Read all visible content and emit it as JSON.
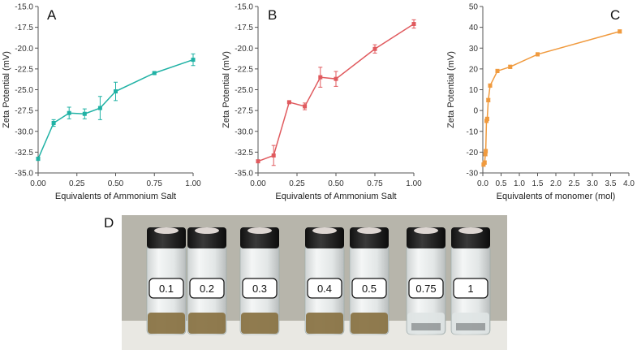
{
  "chart_data": [
    {
      "type": "line",
      "title": "A",
      "x_label": "Equivalents of Ammonium Salt",
      "y_label": "Zeta Potential (mV)",
      "color": "#20b2a5",
      "x": [
        0,
        0.1,
        0.2,
        0.3,
        0.4,
        0.5,
        0.75,
        1
      ],
      "values": [
        -33.3,
        -29,
        -27.8,
        -27.9,
        -27.2,
        -25.2,
        -23,
        -21.4
      ],
      "errors": [
        0.2,
        0.4,
        0.7,
        0.6,
        1.4,
        1.1,
        0.1,
        0.7
      ],
      "xlim": [
        0,
        1
      ],
      "xticks": [
        {
          "value": 0,
          "label": "0.00"
        },
        {
          "value": 0.25,
          "label": "0.25"
        },
        {
          "value": 0.5,
          "label": "0.50"
        },
        {
          "value": 0.75,
          "label": "0.75"
        },
        {
          "value": 1,
          "label": "1.00"
        }
      ],
      "ylim": [
        -35,
        -15
      ],
      "yticks": [
        {
          "value": -35,
          "label": "-35.0"
        },
        -32.5,
        {
          "value": -30,
          "label": "-30.0"
        },
        -27.5,
        {
          "value": -25,
          "label": "-25.0"
        },
        -22.5,
        {
          "value": -20,
          "label": "-20.0"
        },
        -17.5,
        {
          "value": -15,
          "label": "-15.0"
        }
      ]
    },
    {
      "type": "line",
      "title": "B",
      "x_label": "Equivalents of Ammonium Salt",
      "y_label": "Zeta Potential (mV)",
      "color": "#e05a5e",
      "x": [
        0,
        0.1,
        0.2,
        0.3,
        0.4,
        0.5,
        0.75,
        1
      ],
      "values": [
        -33.6,
        -32.9,
        -26.5,
        -27,
        -23.5,
        -23.7,
        -20.1,
        -17.1
      ],
      "errors": [
        0.1,
        1.2,
        0.1,
        0.4,
        1.2,
        0.9,
        0.5,
        0.5
      ],
      "xlim": [
        0,
        1
      ],
      "xticks": [
        {
          "value": 0,
          "label": "0.00"
        },
        {
          "value": 0.25,
          "label": "0.25"
        },
        {
          "value": 0.5,
          "label": "0.50"
        },
        {
          "value": 0.75,
          "label": "0.75"
        },
        {
          "value": 1,
          "label": "1.00"
        }
      ],
      "ylim": [
        -35,
        -15
      ],
      "yticks": [
        {
          "value": -35,
          "label": "-35.0"
        },
        -32.5,
        {
          "value": -30,
          "label": "-30.0"
        },
        -27.5,
        {
          "value": -25,
          "label": "-25.0"
        },
        -22.5,
        {
          "value": -20,
          "label": "-20.0"
        },
        -17.5,
        {
          "value": -15,
          "label": "-15.0"
        }
      ]
    },
    {
      "type": "line",
      "title": "C",
      "x_label": "Equivalents of monomer (mol)",
      "y_label": "Zeta Potential (mV)",
      "color": "#f09a3e",
      "x": [
        0.02,
        0.05,
        0.07,
        0.08,
        0.1,
        0.12,
        0.15,
        0.2,
        0.4,
        0.75,
        1.5,
        3.75
      ],
      "values": [
        -26,
        -25,
        -21,
        -19.5,
        -5,
        -4,
        5,
        12,
        19,
        21,
        27,
        38
      ],
      "errors": [
        0.8,
        0.8,
        0.8,
        0.8,
        0.8,
        0.8,
        0.8,
        0.8,
        0.8,
        0.8,
        0.8,
        0.8
      ],
      "xlim": [
        0,
        4
      ],
      "xticks": [
        {
          "value": 0,
          "label": "0.0"
        },
        0.5,
        {
          "value": 1,
          "label": "1.0"
        },
        1.5,
        {
          "value": 2,
          "label": "2.0"
        },
        2.5,
        {
          "value": 3,
          "label": "3.0"
        },
        3.5,
        {
          "value": 4,
          "label": "4.0"
        }
      ],
      "ylim": [
        -30,
        50
      ],
      "yticks": [
        -30,
        -20,
        -10,
        0,
        10,
        20,
        30,
        40,
        50
      ]
    }
  ],
  "photo": {
    "label": "D",
    "vial_labels": [
      "0.1",
      "0.2",
      "0.3",
      "0.4",
      "0.5",
      "0.75",
      "1"
    ]
  }
}
